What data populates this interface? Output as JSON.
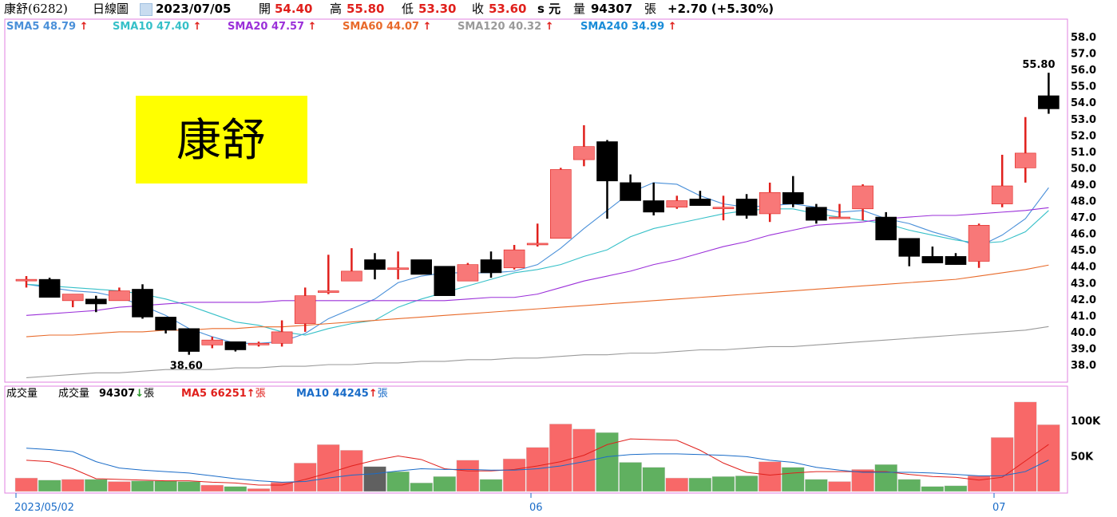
{
  "header": {
    "stock": "康舒(6282)",
    "chart_type": "日線圖",
    "date": "2023/07/05",
    "open_label": "開",
    "open": "54.40",
    "high_label": "高",
    "high": "55.80",
    "low_label": "低",
    "low": "53.30",
    "close_label": "收",
    "close": "53.60",
    "unit_label": "s 元",
    "volume_label": "量",
    "volume": "94307",
    "volume_unit": "張",
    "change": "+2.70 (+5.30%)"
  },
  "sma": [
    {
      "label": "SMA5 48.79",
      "color": "#4a90d9"
    },
    {
      "label": "SMA10 47.40",
      "color": "#36c0c8"
    },
    {
      "label": "SMA20 47.57",
      "color": "#9b30d9"
    },
    {
      "label": "SMA60 44.07",
      "color": "#e86a2a"
    },
    {
      "label": "SMA120 40.32",
      "color": "#9a9a9a"
    },
    {
      "label": "SMA240 34.99",
      "color": "#1a8cd8"
    }
  ],
  "volume_header": {
    "title": "成交量",
    "vol_label": "成交量",
    "vol_value": "94307",
    "vol_unit": "張",
    "ma5_label": "MA5 66251",
    "ma5_unit": "張",
    "ma10_label": "MA10 44245",
    "ma10_unit": "張"
  },
  "stamp": "康舒",
  "colors": {
    "up": "#f87878",
    "up_wick": "#e0201c",
    "down": "#000000",
    "vol_up": "#f86868",
    "vol_down": "#60b060",
    "frame": "#e080e0"
  },
  "chart_data": {
    "type": "candlestick",
    "price_axis": {
      "ticks": [
        38.0,
        39.0,
        40.0,
        41.0,
        42.0,
        43.0,
        44.0,
        45.0,
        46.0,
        47.0,
        48.0,
        49.0,
        50.0,
        51.0,
        52.0,
        53.0,
        54.0,
        55.0,
        56.0,
        57.0,
        58.0
      ]
    },
    "x_labels": [
      "2023/05/02",
      "06",
      "07"
    ],
    "annotations": [
      "38.60",
      "55.80"
    ],
    "candles": [
      {
        "o": 43.2,
        "h": 43.4,
        "l": 42.7,
        "c": 43.2
      },
      {
        "o": 43.2,
        "h": 43.3,
        "l": 42.1,
        "c": 42.1
      },
      {
        "o": 41.9,
        "h": 42.3,
        "l": 41.5,
        "c": 42.3
      },
      {
        "o": 42.0,
        "h": 42.2,
        "l": 41.2,
        "c": 41.7
      },
      {
        "o": 41.9,
        "h": 42.7,
        "l": 41.9,
        "c": 42.5
      },
      {
        "o": 42.6,
        "h": 42.9,
        "l": 40.8,
        "c": 40.9
      },
      {
        "o": 40.9,
        "h": 40.9,
        "l": 39.9,
        "c": 40.1
      },
      {
        "o": 40.2,
        "h": 40.2,
        "l": 38.6,
        "c": 38.8
      },
      {
        "o": 39.2,
        "h": 39.7,
        "l": 39.0,
        "c": 39.5
      },
      {
        "o": 39.4,
        "h": 39.4,
        "l": 38.8,
        "c": 38.9
      },
      {
        "o": 39.2,
        "h": 39.4,
        "l": 39.1,
        "c": 39.3
      },
      {
        "o": 39.3,
        "h": 40.7,
        "l": 39.1,
        "c": 40.0
      },
      {
        "o": 40.5,
        "h": 42.7,
        "l": 40.0,
        "c": 42.2
      },
      {
        "o": 42.4,
        "h": 44.7,
        "l": 42.3,
        "c": 42.5
      },
      {
        "o": 43.1,
        "h": 45.1,
        "l": 43.1,
        "c": 43.7
      },
      {
        "o": 44.4,
        "h": 44.8,
        "l": 43.2,
        "c": 43.8
      },
      {
        "o": 43.8,
        "h": 44.9,
        "l": 43.2,
        "c": 43.9
      },
      {
        "o": 44.4,
        "h": 44.4,
        "l": 43.5,
        "c": 43.5
      },
      {
        "o": 44.0,
        "h": 44.0,
        "l": 42.2,
        "c": 42.2
      },
      {
        "o": 43.1,
        "h": 44.2,
        "l": 43.1,
        "c": 44.1
      },
      {
        "o": 44.4,
        "h": 44.9,
        "l": 43.3,
        "c": 43.6
      },
      {
        "o": 43.9,
        "h": 45.3,
        "l": 43.8,
        "c": 45.0
      },
      {
        "o": 45.4,
        "h": 46.6,
        "l": 45.2,
        "c": 45.4
      },
      {
        "o": 45.7,
        "h": 50.0,
        "l": 45.7,
        "c": 49.9
      },
      {
        "o": 50.5,
        "h": 52.6,
        "l": 50.1,
        "c": 51.3
      },
      {
        "o": 51.6,
        "h": 51.7,
        "l": 46.9,
        "c": 49.2
      },
      {
        "o": 49.1,
        "h": 49.6,
        "l": 48.0,
        "c": 48.0
      },
      {
        "o": 48.0,
        "h": 49.1,
        "l": 47.1,
        "c": 47.3
      },
      {
        "o": 47.6,
        "h": 48.3,
        "l": 47.5,
        "c": 48.0
      },
      {
        "o": 48.1,
        "h": 48.6,
        "l": 47.7,
        "c": 47.7
      },
      {
        "o": 47.6,
        "h": 48.3,
        "l": 46.8,
        "c": 47.6
      },
      {
        "o": 48.1,
        "h": 48.4,
        "l": 46.9,
        "c": 47.1
      },
      {
        "o": 47.2,
        "h": 49.1,
        "l": 46.7,
        "c": 48.5
      },
      {
        "o": 48.5,
        "h": 49.5,
        "l": 47.6,
        "c": 47.8
      },
      {
        "o": 47.6,
        "h": 47.8,
        "l": 46.6,
        "c": 46.8
      },
      {
        "o": 47.0,
        "h": 47.8,
        "l": 47.0,
        "c": 47.0
      },
      {
        "o": 47.5,
        "h": 49.0,
        "l": 46.8,
        "c": 48.9
      },
      {
        "o": 47.0,
        "h": 47.3,
        "l": 45.6,
        "c": 45.6
      },
      {
        "o": 45.7,
        "h": 45.7,
        "l": 44.0,
        "c": 44.6
      },
      {
        "o": 44.6,
        "h": 45.2,
        "l": 44.2,
        "c": 44.2
      },
      {
        "o": 44.6,
        "h": 44.8,
        "l": 44.1,
        "c": 44.1
      },
      {
        "o": 44.3,
        "h": 46.6,
        "l": 43.9,
        "c": 46.5
      },
      {
        "o": 47.8,
        "h": 50.8,
        "l": 47.6,
        "c": 48.9
      },
      {
        "o": 50.0,
        "h": 53.1,
        "l": 49.1,
        "c": 50.9
      },
      {
        "o": 54.4,
        "h": 55.8,
        "l": 53.3,
        "c": 53.6
      }
    ],
    "volume_axis": {
      "ticks": [
        "50K",
        "100K"
      ]
    },
    "volume": [
      19000,
      16000,
      17000,
      17000,
      14000,
      15000,
      15000,
      14000,
      9000,
      7000,
      4000,
      13000,
      40000,
      66000,
      58000,
      35000,
      28000,
      12000,
      21000,
      44000,
      17000,
      46000,
      62000,
      95000,
      88000,
      83000,
      41000,
      34000,
      19000,
      19000,
      21000,
      22000,
      42000,
      34000,
      17000,
      14000,
      31000,
      38000,
      17000,
      7000,
      8000,
      22000,
      76000,
      126000,
      94000
    ],
    "volume_up": [
      true,
      false,
      true,
      false,
      true,
      false,
      false,
      false,
      true,
      false,
      true,
      true,
      true,
      true,
      true,
      false,
      false,
      false,
      false,
      true,
      false,
      true,
      true,
      true,
      true,
      false,
      false,
      false,
      true,
      false,
      false,
      false,
      true,
      false,
      false,
      true,
      true,
      false,
      false,
      false,
      false,
      true,
      true,
      true,
      true
    ],
    "volume_highlight": 15,
    "series": [
      {
        "name": "SMA5",
        "values": [
          42.9,
          42.7,
          42.5,
          42.4,
          42.1,
          41.6,
          41.0,
          40.2,
          39.7,
          39.3,
          39.3,
          39.4,
          39.9,
          40.8,
          41.4,
          42.0,
          43.0,
          43.4,
          43.6,
          43.6,
          43.6,
          43.7,
          44.1,
          45.1,
          46.3,
          47.4,
          48.5,
          49.1,
          49.0,
          48.3,
          47.8,
          47.6,
          47.7,
          47.8,
          47.6,
          47.3,
          47.4,
          46.9,
          46.6,
          46.1,
          45.7,
          45.2,
          45.9,
          46.9,
          48.79
        ]
      },
      {
        "name": "SMA10",
        "values": [
          42.9,
          42.8,
          42.7,
          42.6,
          42.5,
          42.3,
          42.0,
          41.6,
          41.1,
          40.6,
          40.4,
          40.0,
          39.8,
          40.2,
          40.5,
          40.7,
          41.5,
          42.0,
          42.4,
          42.8,
          43.2,
          43.6,
          43.8,
          44.1,
          44.6,
          45.0,
          45.8,
          46.3,
          46.6,
          46.9,
          47.2,
          47.4,
          47.5,
          47.5,
          47.2,
          47.0,
          46.8,
          46.6,
          46.2,
          45.9,
          45.6,
          45.4,
          45.5,
          46.1,
          47.4
        ]
      },
      {
        "name": "SMA20",
        "values": [
          41.0,
          41.1,
          41.2,
          41.3,
          41.5,
          41.6,
          41.7,
          41.8,
          41.8,
          41.8,
          41.8,
          41.9,
          41.9,
          41.9,
          41.9,
          41.9,
          41.9,
          41.9,
          41.9,
          42.0,
          42.1,
          42.1,
          42.3,
          42.7,
          43.1,
          43.4,
          43.7,
          44.1,
          44.4,
          44.8,
          45.2,
          45.5,
          45.9,
          46.2,
          46.5,
          46.6,
          46.7,
          46.9,
          47.0,
          47.1,
          47.1,
          47.2,
          47.3,
          47.4,
          47.57
        ]
      },
      {
        "name": "SMA60",
        "values": [
          39.7,
          39.8,
          39.8,
          39.9,
          40.0,
          40.0,
          40.1,
          40.1,
          40.2,
          40.2,
          40.3,
          40.3,
          40.4,
          40.5,
          40.6,
          40.7,
          40.8,
          40.9,
          41.0,
          41.1,
          41.2,
          41.3,
          41.4,
          41.5,
          41.6,
          41.7,
          41.8,
          41.9,
          42.0,
          42.1,
          42.2,
          42.3,
          42.4,
          42.5,
          42.6,
          42.7,
          42.8,
          42.9,
          43.0,
          43.1,
          43.2,
          43.4,
          43.6,
          43.8,
          44.07
        ]
      },
      {
        "name": "SMA120",
        "values": [
          37.2,
          37.3,
          37.4,
          37.5,
          37.5,
          37.6,
          37.7,
          37.7,
          37.7,
          37.8,
          37.8,
          37.9,
          37.9,
          38.0,
          38.0,
          38.1,
          38.1,
          38.2,
          38.2,
          38.3,
          38.3,
          38.4,
          38.4,
          38.5,
          38.6,
          38.6,
          38.7,
          38.7,
          38.8,
          38.9,
          38.9,
          39.0,
          39.1,
          39.1,
          39.2,
          39.3,
          39.4,
          39.5,
          39.6,
          39.7,
          39.8,
          39.9,
          40.0,
          40.1,
          40.32
        ]
      },
      {
        "name": "SMA240",
        "values": [
          34.99
        ]
      }
    ],
    "volume_ma5": [
      44000,
      42000,
      32000,
      18000,
      17000,
      16000,
      15000,
      15000,
      13000,
      12000,
      9000,
      9000,
      17000,
      26000,
      36000,
      44000,
      50000,
      45000,
      32000,
      29000,
      29000,
      31000,
      36000,
      42000,
      51000,
      66000,
      74000,
      73000,
      72000,
      58000,
      40000,
      27000,
      23000,
      26000,
      28000,
      28000,
      28000,
      28000,
      24000,
      21000,
      20000,
      16000,
      20000,
      43000,
      66251
    ],
    "volume_ma10": [
      61000,
      59000,
      56000,
      42000,
      33000,
      30000,
      28000,
      26000,
      22000,
      18000,
      15000,
      13000,
      14000,
      19000,
      23000,
      25000,
      29000,
      32000,
      31000,
      31000,
      30000,
      30000,
      32000,
      36000,
      42000,
      49000,
      52000,
      53000,
      53000,
      52000,
      51000,
      49000,
      44000,
      41000,
      34000,
      30000,
      27000,
      27000,
      27000,
      26000,
      24000,
      22000,
      22000,
      28000,
      44245
    ]
  }
}
